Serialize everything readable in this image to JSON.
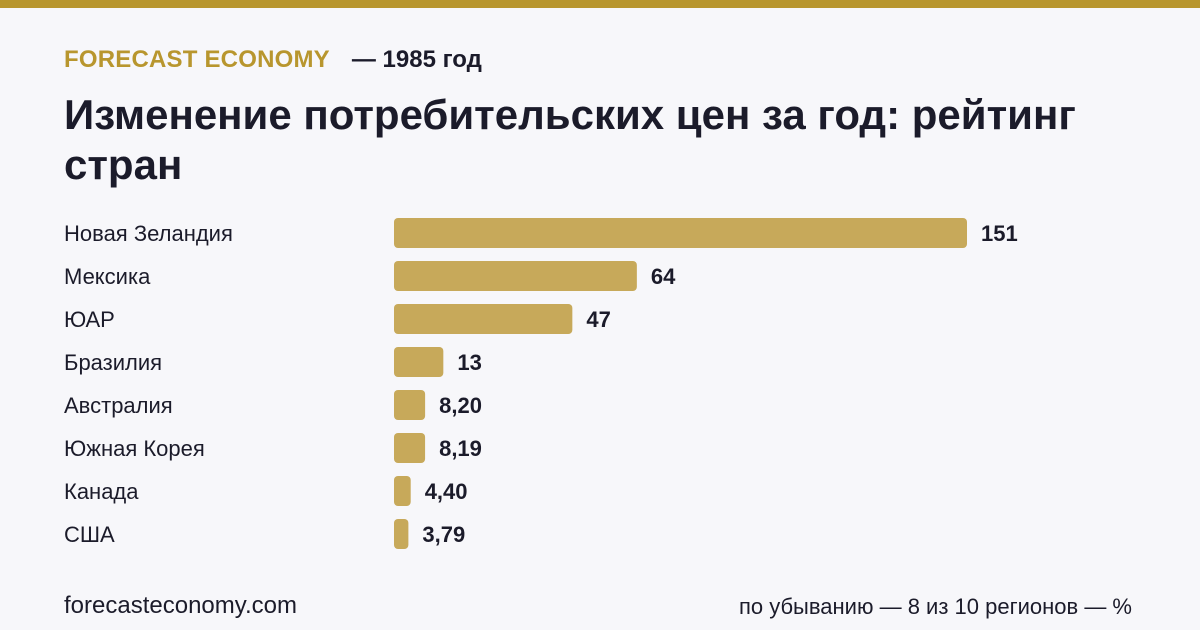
{
  "header": {
    "brand": "FORECAST ECONOMY",
    "year_label": "— 1985 год",
    "title": "Изменение потребительских цен за год: рейтинг стран"
  },
  "footer": {
    "site": "forecasteconomy.com",
    "note": "по убыванию — 8 из 10 регионов — %"
  },
  "colors": {
    "accent": "#b8962e",
    "bar": "#c7a95a",
    "text": "#1b1b2a",
    "background": "#f7f7fa"
  },
  "chart_data": {
    "type": "bar",
    "orientation": "horizontal",
    "categories": [
      "Новая Зеландия",
      "Мексика",
      "ЮАР",
      "Бразилия",
      "Австралия",
      "Южная Корея",
      "Канада",
      "США"
    ],
    "values": [
      151,
      64,
      47,
      13,
      8.2,
      8.19,
      4.4,
      3.79
    ],
    "value_labels": [
      "151",
      "64",
      "47",
      "13",
      "8,20",
      "8,19",
      "4,40",
      "3,79"
    ],
    "xlim": [
      0,
      151
    ],
    "grid": false,
    "legend": "none"
  }
}
